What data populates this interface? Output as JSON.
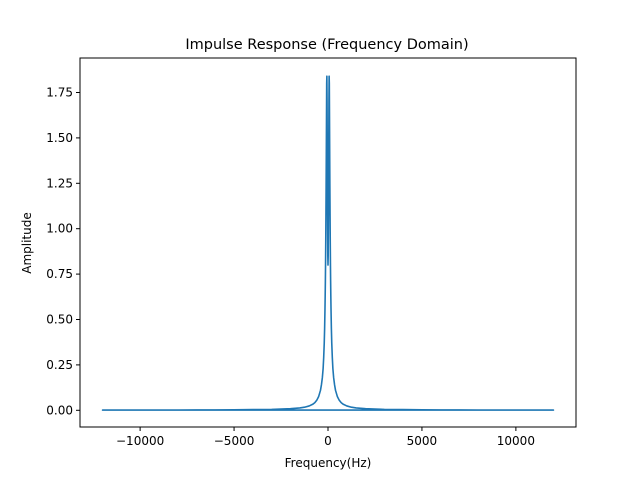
{
  "chart_data": {
    "type": "line",
    "title": "Impulse Response (Frequency Domain)",
    "xlabel": "Frequency(Hz)",
    "ylabel": "Amplitude",
    "xlim": [
      -13200,
      13200
    ],
    "ylim": [
      -0.092,
      1.94
    ],
    "x_ticks": [
      -10000,
      -5000,
      0,
      5000,
      10000
    ],
    "x_tick_labels": [
      "−10000",
      "−5000",
      "0",
      "5000",
      "10000"
    ],
    "y_ticks": [
      0.0,
      0.25,
      0.5,
      0.75,
      1.0,
      1.25,
      1.5,
      1.75
    ],
    "y_tick_labels": [
      "0.00",
      "0.25",
      "0.50",
      "0.75",
      "1.00",
      "1.25",
      "1.50",
      "1.75"
    ],
    "grid": false,
    "legend": "none",
    "series": [
      {
        "color": "#1f77b4",
        "x": [
          0,
          10,
          20,
          30,
          40,
          50,
          60,
          70,
          80,
          90,
          100,
          110,
          120,
          130,
          140,
          150,
          160,
          180,
          200,
          230,
          260,
          300,
          350,
          400,
          500,
          600,
          700,
          800,
          1000,
          1250,
          1500,
          2000,
          2500,
          3000,
          4000,
          5000,
          6000,
          7000,
          8000,
          9000,
          10000,
          11000,
          12000,
          -12000,
          -11000,
          -10000,
          -9000,
          -8000,
          -7000,
          -6000,
          -5000,
          -4000,
          -3000,
          -2500,
          -2000,
          -1500,
          -1250,
          -1000,
          -800,
          -700,
          -600,
          -500,
          -400,
          -350,
          -300,
          -260,
          -230,
          -200,
          -180,
          -160,
          -150,
          -140,
          -130,
          -120,
          -110,
          -100,
          -90,
          -80,
          -70,
          -60,
          -50,
          -40,
          -30,
          -20,
          -10,
          0
        ],
        "y": [
          0.8,
          0.85,
          1.0,
          1.2,
          1.45,
          1.7,
          1.84,
          1.8,
          1.62,
          1.42,
          1.23,
          1.07,
          0.93,
          0.81,
          0.71,
          0.63,
          0.56,
          0.45,
          0.37,
          0.29,
          0.23,
          0.18,
          0.14,
          0.11,
          0.075,
          0.055,
          0.042,
          0.034,
          0.024,
          0.017,
          0.013,
          0.009,
          0.007,
          0.005,
          0.004,
          0.003,
          0.002,
          0.002,
          0.0015,
          0.0012,
          0.001,
          0.001,
          0.001,
          0.001,
          0.001,
          0.001,
          0.0012,
          0.0015,
          0.002,
          0.002,
          0.003,
          0.004,
          0.005,
          0.007,
          0.009,
          0.013,
          0.017,
          0.024,
          0.034,
          0.042,
          0.055,
          0.075,
          0.11,
          0.14,
          0.18,
          0.23,
          0.29,
          0.37,
          0.45,
          0.56,
          0.63,
          0.71,
          0.81,
          0.93,
          1.07,
          1.23,
          1.42,
          1.62,
          1.8,
          1.84,
          1.7,
          1.45,
          1.2,
          1.0,
          0.85,
          0.8
        ]
      }
    ]
  }
}
